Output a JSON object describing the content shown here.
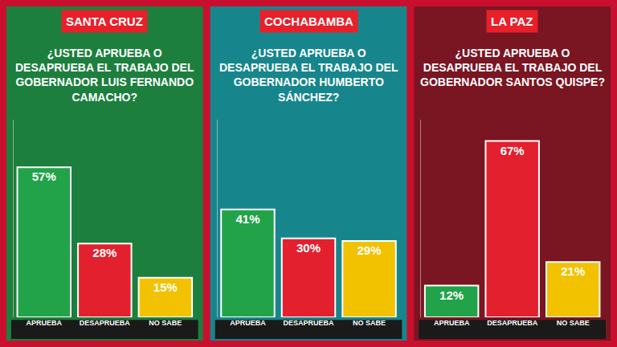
{
  "chart_data": [
    {
      "type": "bar",
      "title": "SANTA CRUZ",
      "subtitle": "¿USTED APRUEBA O DESAPRUEBA EL TRABAJO DEL GOBERNADOR LUIS FERNANDO CAMACHO?",
      "categories": [
        "APRUEBA",
        "DESAPRUEBA",
        "NO SABE"
      ],
      "values": [
        57,
        28,
        15
      ],
      "value_labels": [
        "57%",
        "28%",
        "15%"
      ],
      "colors": [
        "#22a349",
        "#e3202e",
        "#f2c200"
      ],
      "data_labels": true,
      "tick_labels": "x",
      "ylim": [
        0,
        75
      ],
      "grid": false
    },
    {
      "type": "bar",
      "title": "COCHABAMBA",
      "subtitle": "¿USTED APRUEBA O DESAPRUEBA EL TRABAJO DEL GOBERNADOR HUMBERTO SÁNCHEZ?",
      "categories": [
        "APRUEBA",
        "DESAPRUEBA",
        "NO SABE"
      ],
      "values": [
        41,
        30,
        29
      ],
      "value_labels": [
        "41%",
        "30%",
        "29%"
      ],
      "colors": [
        "#22a349",
        "#e3202e",
        "#f2c200"
      ],
      "data_labels": true,
      "tick_labels": "x",
      "ylim": [
        0,
        75
      ],
      "grid": false
    },
    {
      "type": "bar",
      "title": "LA PAZ",
      "subtitle": "¿USTED APRUEBA O DESAPRUEBA EL TRABAJO DEL GOBERNADOR SANTOS QUISPE?",
      "categories": [
        "APRUEBA",
        "DESAPRUEBA",
        "NO SABE"
      ],
      "values": [
        12,
        67,
        21
      ],
      "value_labels": [
        "12%",
        "67%",
        "21%"
      ],
      "colors": [
        "#22a349",
        "#e3202e",
        "#f2c200"
      ],
      "data_labels": true,
      "tick_labels": "x",
      "ylim": [
        0,
        75
      ],
      "grid": false
    }
  ]
}
